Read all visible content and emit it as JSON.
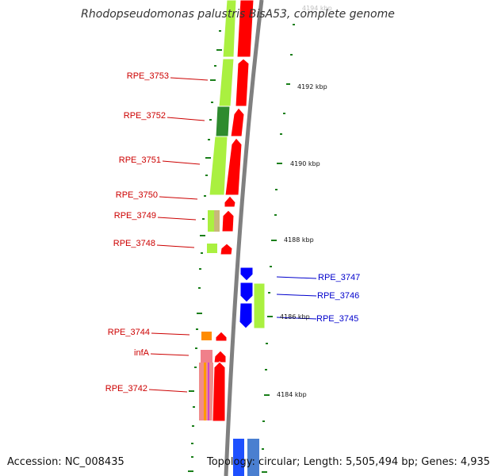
{
  "title": "Rhodopseudomonas palustris BisA53, complete genome",
  "footer": {
    "accession": "Accession: NC_008435",
    "topology": "Topology: circular; Length: 5,505,494 bp; Genes: 4,935"
  },
  "colors": {
    "forward_label": "#cc0000",
    "reverse_label": "#0000cc",
    "backbone": "#808080",
    "tick": "#1a7f1a",
    "cds_forward": "#ff0000",
    "cds_reverse": "#0000ff",
    "cog_light_green": "#aaf040",
    "cog_dark_green": "#2e8b2e"
  },
  "kbp_labels": [
    "4194 kbp",
    "4192 kbp",
    "4190 kbp",
    "4188 kbp",
    "4186 kbp",
    "4184 kbp"
  ],
  "genes": [
    {
      "label": "RPE_3753",
      "strand": "forward"
    },
    {
      "label": "RPE_3752",
      "strand": "forward"
    },
    {
      "label": "RPE_3751",
      "strand": "forward"
    },
    {
      "label": "RPE_3750",
      "strand": "forward"
    },
    {
      "label": "RPE_3749",
      "strand": "forward"
    },
    {
      "label": "RPE_3748",
      "strand": "forward"
    },
    {
      "label": "RPE_3747",
      "strand": "reverse"
    },
    {
      "label": "RPE_3746",
      "strand": "reverse"
    },
    {
      "label": "RPE_3745",
      "strand": "reverse"
    },
    {
      "label": "RPE_3744",
      "strand": "forward"
    },
    {
      "label": "infA",
      "strand": "forward"
    },
    {
      "label": "RPE_3742",
      "strand": "forward"
    }
  ]
}
